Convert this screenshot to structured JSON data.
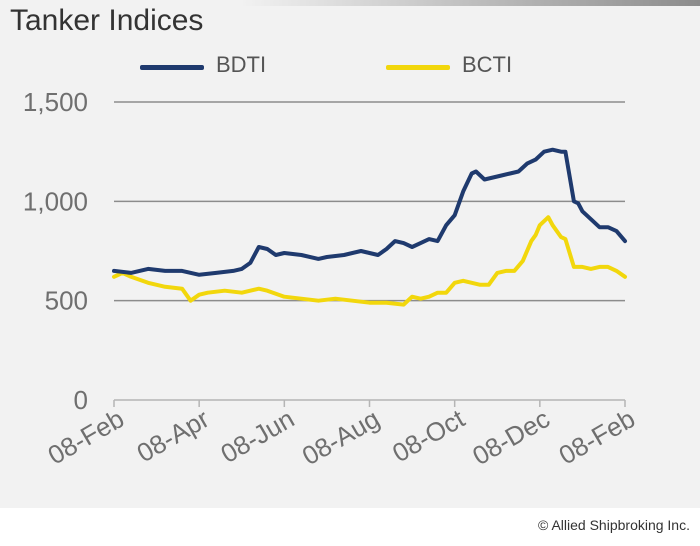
{
  "title": "Tanker Indices",
  "credit": "© Allied Shipbroking Inc.",
  "colors": {
    "BDTI": "#1f3a6e",
    "BCTI": "#f2d70c",
    "grid": "#8c8c8c",
    "axis_text": "#6f6f6f"
  },
  "chart_data": {
    "type": "line",
    "title": "Tanker Indices",
    "xlabel": "",
    "ylabel": "",
    "ylim": [
      0,
      1500
    ],
    "yticks": [
      0,
      500,
      1000,
      1500
    ],
    "ytick_labels": [
      "0",
      "500",
      "1,000",
      "1,500"
    ],
    "xticks": [
      0,
      2,
      4,
      6,
      8,
      10,
      12
    ],
    "xtick_labels": [
      "08-Feb",
      "08-Apr",
      "08-Jun",
      "08-Aug",
      "08-Oct",
      "08-Dec",
      "08-Feb"
    ],
    "grid": "horizontal",
    "legend": "top",
    "series": [
      {
        "name": "BDTI",
        "x": [
          0,
          0.4,
          0.8,
          1.2,
          1.6,
          2.0,
          2.4,
          2.8,
          3.0,
          3.2,
          3.4,
          3.6,
          3.8,
          4.0,
          4.4,
          4.8,
          5.0,
          5.4,
          5.8,
          6.0,
          6.2,
          6.4,
          6.6,
          6.8,
          7.0,
          7.2,
          7.4,
          7.6,
          7.8,
          8.0,
          8.2,
          8.4,
          8.5,
          8.7,
          8.9,
          9.1,
          9.3,
          9.5,
          9.7,
          9.9,
          10.1,
          10.3,
          10.5,
          10.6,
          10.8,
          10.9,
          11.0,
          11.2,
          11.4,
          11.6,
          11.8,
          12.0
        ],
        "y": [
          650,
          640,
          660,
          650,
          650,
          630,
          640,
          650,
          660,
          690,
          770,
          760,
          730,
          740,
          730,
          710,
          720,
          730,
          750,
          740,
          730,
          760,
          800,
          790,
          770,
          790,
          810,
          800,
          880,
          930,
          1050,
          1140,
          1150,
          1110,
          1120,
          1130,
          1140,
          1150,
          1190,
          1210,
          1250,
          1260,
          1250,
          1250,
          1000,
          990,
          950,
          910,
          870,
          870,
          850,
          800
        ]
      },
      {
        "name": "BCTI",
        "x": [
          0,
          0.2,
          0.4,
          0.8,
          1.2,
          1.6,
          1.8,
          2.0,
          2.2,
          2.6,
          3.0,
          3.4,
          3.6,
          4.0,
          4.4,
          4.8,
          5.2,
          5.6,
          6.0,
          6.4,
          6.8,
          7.0,
          7.2,
          7.4,
          7.6,
          7.8,
          8.0,
          8.2,
          8.4,
          8.6,
          8.8,
          9.0,
          9.2,
          9.4,
          9.6,
          9.8,
          9.9,
          10.0,
          10.2,
          10.3,
          10.5,
          10.6,
          10.8,
          11.0,
          11.2,
          11.4,
          11.6,
          11.8,
          12.0
        ],
        "y": [
          620,
          640,
          620,
          590,
          570,
          560,
          500,
          530,
          540,
          550,
          540,
          560,
          550,
          520,
          510,
          500,
          510,
          500,
          490,
          490,
          480,
          520,
          510,
          520,
          540,
          540,
          590,
          600,
          590,
          580,
          580,
          640,
          650,
          650,
          700,
          800,
          830,
          880,
          920,
          880,
          820,
          810,
          670,
          670,
          660,
          670,
          670,
          650,
          620
        ]
      }
    ]
  }
}
